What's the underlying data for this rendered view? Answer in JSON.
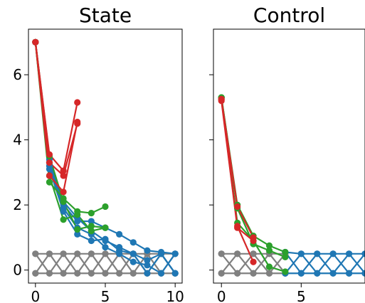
{
  "chart_data": [
    {
      "type": "line",
      "title": "State",
      "xlabel": "",
      "ylabel": "",
      "xlim": [
        -0.5,
        10.5
      ],
      "ylim": [
        -0.4,
        7.4
      ],
      "xticks": [
        0,
        5,
        10
      ],
      "yticks": [
        0,
        2,
        4,
        6
      ],
      "grid": false,
      "series": [
        {
          "color": "#808080",
          "points": [
            [
              0,
              0.5
            ],
            [
              1,
              -0.1
            ],
            [
              2,
              0.5
            ],
            [
              3,
              -0.1
            ],
            [
              4,
              0.5
            ],
            [
              5,
              -0.1
            ],
            [
              6,
              0.5
            ],
            [
              7,
              -0.1
            ],
            [
              8,
              0.5
            ],
            [
              9,
              -0.1
            ],
            [
              10,
              0.5
            ]
          ]
        },
        {
          "color": "#808080",
          "points": [
            [
              0,
              -0.1
            ],
            [
              1,
              0.5
            ],
            [
              2,
              -0.1
            ],
            [
              3,
              0.5
            ],
            [
              4,
              -0.1
            ],
            [
              5,
              0.5
            ],
            [
              6,
              -0.1
            ],
            [
              7,
              0.5
            ],
            [
              8,
              -0.1
            ],
            [
              9,
              0.5
            ],
            [
              10,
              -0.1
            ]
          ]
        },
        {
          "color": "#808080",
          "points": [
            [
              0,
              0.5
            ],
            [
              1,
              0.5
            ],
            [
              2,
              0.5
            ],
            [
              3,
              0.5
            ],
            [
              4,
              0.5
            ],
            [
              5,
              0.5
            ],
            [
              6,
              0.5
            ],
            [
              7,
              0.5
            ],
            [
              8,
              0.5
            ],
            [
              9,
              0.5
            ],
            [
              10,
              0.5
            ]
          ]
        },
        {
          "color": "#808080",
          "points": [
            [
              0,
              -0.1
            ],
            [
              1,
              -0.1
            ],
            [
              2,
              -0.1
            ],
            [
              3,
              -0.1
            ],
            [
              4,
              -0.1
            ],
            [
              5,
              -0.1
            ],
            [
              6,
              -0.1
            ],
            [
              7,
              -0.1
            ],
            [
              8,
              -0.1
            ],
            [
              9,
              -0.1
            ],
            [
              10,
              -0.1
            ]
          ]
        },
        {
          "color": "#1f77b4",
          "points": [
            [
              0,
              7.0
            ],
            [
              1,
              3.4
            ],
            [
              2,
              2.1
            ],
            [
              3,
              1.6
            ],
            [
              4,
              1.2
            ],
            [
              5,
              0.9
            ],
            [
              6,
              0.7
            ],
            [
              7,
              0.5
            ],
            [
              8,
              0.3
            ],
            [
              9,
              0.5
            ],
            [
              10,
              -0.1
            ]
          ]
        },
        {
          "color": "#1f77b4",
          "points": [
            [
              0,
              7.0
            ],
            [
              1,
              3.3
            ],
            [
              2,
              2.0
            ],
            [
              3,
              1.5
            ],
            [
              4,
              1.5
            ],
            [
              5,
              1.3
            ],
            [
              6,
              1.1
            ],
            [
              7,
              0.85
            ],
            [
              8,
              0.6
            ],
            [
              9,
              0.55
            ],
            [
              10,
              0.5
            ]
          ]
        },
        {
          "color": "#1f77b4",
          "points": [
            [
              0,
              7.0
            ],
            [
              1,
              3.2
            ],
            [
              2,
              1.9
            ],
            [
              3,
              1.3
            ],
            [
              4,
              1.1
            ],
            [
              5,
              0.7
            ],
            [
              6,
              0.5
            ],
            [
              7,
              0.25
            ],
            [
              8,
              0.15
            ],
            [
              9,
              -0.1
            ],
            [
              10,
              0.5
            ]
          ]
        },
        {
          "color": "#1f77b4",
          "points": [
            [
              0,
              7.0
            ],
            [
              1,
              3.1
            ],
            [
              2,
              1.8
            ],
            [
              3,
              1.1
            ],
            [
              4,
              0.9
            ],
            [
              5,
              0.95
            ],
            [
              6,
              0.6
            ],
            [
              7,
              0.5
            ],
            [
              8,
              -0.1
            ],
            [
              9,
              0.5
            ],
            [
              10,
              -0.1
            ]
          ]
        },
        {
          "color": "#2ca02c",
          "points": [
            [
              0,
              7.0
            ],
            [
              1,
              2.7
            ],
            [
              2,
              2.2
            ],
            [
              3,
              1.8
            ],
            [
              4,
              1.75
            ],
            [
              5,
              1.95
            ]
          ]
        },
        {
          "color": "#2ca02c",
          "points": [
            [
              0,
              7.0
            ],
            [
              1,
              2.9
            ],
            [
              2,
              1.55
            ],
            [
              3,
              1.7
            ],
            [
              4,
              1.2
            ],
            [
              5,
              1.3
            ]
          ]
        },
        {
          "color": "#2ca02c",
          "points": [
            [
              0,
              7.0
            ],
            [
              1,
              3.5
            ],
            [
              2,
              2.1
            ],
            [
              3,
              1.25
            ],
            [
              4,
              1.35
            ],
            [
              5,
              1.3
            ]
          ]
        },
        {
          "color": "#d62728",
          "points": [
            [
              0,
              7.0
            ],
            [
              1,
              3.55
            ],
            [
              2,
              3.05
            ],
            [
              3,
              5.15
            ]
          ]
        },
        {
          "color": "#d62728",
          "points": [
            [
              0,
              7.0
            ],
            [
              1,
              2.9
            ],
            [
              2,
              2.4
            ],
            [
              3,
              4.55
            ]
          ]
        },
        {
          "color": "#d62728",
          "points": [
            [
              0,
              7.0
            ],
            [
              1,
              3.3
            ],
            [
              2,
              2.9
            ],
            [
              3,
              4.5
            ]
          ]
        }
      ]
    },
    {
      "type": "line",
      "title": "Control",
      "xlabel": "",
      "ylabel": "",
      "xlim": [
        -0.5,
        9.0
      ],
      "ylim": [
        -0.4,
        7.4
      ],
      "xticks": [
        0,
        5
      ],
      "yticks": [
        0,
        2,
        4,
        6
      ],
      "grid": false,
      "series": [
        {
          "color": "#808080",
          "points": [
            [
              0,
              0.5
            ],
            [
              1,
              -0.1
            ],
            [
              2,
              0.5
            ],
            [
              3,
              -0.1
            ],
            [
              4,
              0.5
            ]
          ]
        },
        {
          "color": "#808080",
          "points": [
            [
              0,
              -0.1
            ],
            [
              1,
              0.5
            ],
            [
              2,
              -0.1
            ],
            [
              3,
              0.5
            ],
            [
              4,
              -0.1
            ]
          ]
        },
        {
          "color": "#808080",
          "points": [
            [
              0,
              0.5
            ],
            [
              1,
              0.5
            ],
            [
              2,
              0.5
            ],
            [
              3,
              0.5
            ],
            [
              4,
              0.5
            ]
          ]
        },
        {
          "color": "#808080",
          "points": [
            [
              0,
              -0.1
            ],
            [
              1,
              -0.1
            ],
            [
              2,
              -0.1
            ],
            [
              3,
              -0.1
            ],
            [
              4,
              -0.1
            ]
          ]
        },
        {
          "color": "#1f77b4",
          "points": [
            [
              4,
              0.55
            ],
            [
              5,
              0.5
            ],
            [
              6,
              0.5
            ],
            [
              7,
              0.5
            ],
            [
              8,
              0.5
            ],
            [
              9,
              0.5
            ]
          ]
        },
        {
          "color": "#1f77b4",
          "points": [
            [
              4,
              -0.1
            ],
            [
              5,
              -0.1
            ],
            [
              6,
              -0.1
            ],
            [
              7,
              -0.1
            ],
            [
              8,
              -0.1
            ],
            [
              9,
              -0.1
            ]
          ]
        },
        {
          "color": "#1f77b4",
          "points": [
            [
              4,
              0.55
            ],
            [
              5,
              -0.1
            ],
            [
              6,
              0.5
            ],
            [
              7,
              -0.1
            ],
            [
              8,
              0.5
            ],
            [
              9,
              -0.1
            ]
          ]
        },
        {
          "color": "#1f77b4",
          "points": [
            [
              4,
              -0.1
            ],
            [
              5,
              0.5
            ],
            [
              6,
              -0.1
            ],
            [
              7,
              0.5
            ],
            [
              8,
              -0.1
            ],
            [
              9,
              0.5
            ]
          ]
        },
        {
          "color": "#2ca02c",
          "points": [
            [
              0,
              5.3
            ],
            [
              1,
              2.0
            ],
            [
              2,
              1.05
            ],
            [
              3,
              0.75
            ],
            [
              4,
              0.55
            ]
          ]
        },
        {
          "color": "#2ca02c",
          "points": [
            [
              0,
              5.3
            ],
            [
              1,
              1.45
            ],
            [
              2,
              0.9
            ],
            [
              3,
              0.1
            ],
            [
              4,
              -0.05
            ]
          ]
        },
        {
          "color": "#2ca02c",
          "points": [
            [
              0,
              5.3
            ],
            [
              1,
              1.9
            ],
            [
              2,
              0.8
            ],
            [
              3,
              0.6
            ],
            [
              4,
              0.4
            ]
          ]
        },
        {
          "color": "#d62728",
          "points": [
            [
              0,
              5.25
            ],
            [
              1,
              1.35
            ],
            [
              2,
              0.25
            ]
          ]
        },
        {
          "color": "#d62728",
          "points": [
            [
              0,
              5.25
            ],
            [
              1,
              1.95
            ],
            [
              2,
              1.0
            ]
          ]
        },
        {
          "color": "#d62728",
          "points": [
            [
              0,
              5.2
            ],
            [
              1,
              1.3
            ],
            [
              2,
              0.9
            ]
          ]
        }
      ]
    }
  ]
}
